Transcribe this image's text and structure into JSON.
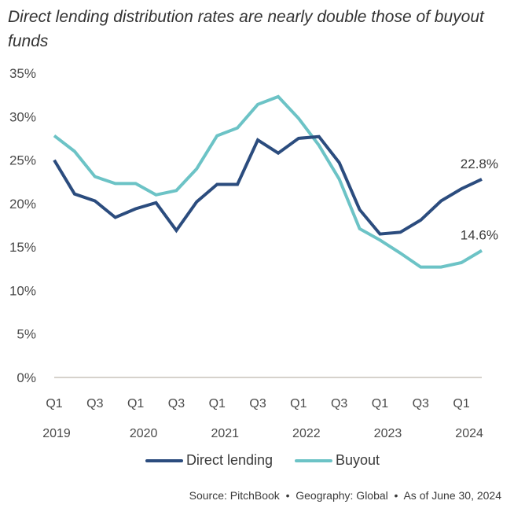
{
  "title": "Direct lending distribution rates are nearly double those of buyout funds",
  "chart_data": {
    "type": "line",
    "title": "Direct lending distribution rates are nearly double those of buyout funds",
    "xlabel": "",
    "ylabel": "",
    "ylim": [
      0,
      35
    ],
    "yticks": [
      "0%",
      "5%",
      "10%",
      "15%",
      "20%",
      "25%",
      "30%",
      "35%"
    ],
    "ytick_values": [
      0,
      5,
      10,
      15,
      20,
      25,
      30,
      35
    ],
    "grid": false,
    "x": [
      "Q1 2019",
      "Q2 2019",
      "Q3 2019",
      "Q4 2019",
      "Q1 2020",
      "Q2 2020",
      "Q3 2020",
      "Q4 2020",
      "Q1 2021",
      "Q2 2021",
      "Q3 2021",
      "Q4 2021",
      "Q1 2022",
      "Q2 2022",
      "Q3 2022",
      "Q4 2022",
      "Q1 2023",
      "Q2 2023",
      "Q3 2023",
      "Q4 2023",
      "Q1 2024",
      "Q2 2024"
    ],
    "xtick_labels": [
      {
        "index": 0,
        "quarter": "Q1",
        "year": "2019"
      },
      {
        "index": 2,
        "quarter": "Q3",
        "year": ""
      },
      {
        "index": 4,
        "quarter": "Q1",
        "year": "2020"
      },
      {
        "index": 6,
        "quarter": "Q3",
        "year": ""
      },
      {
        "index": 8,
        "quarter": "Q1",
        "year": "2021"
      },
      {
        "index": 10,
        "quarter": "Q3",
        "year": ""
      },
      {
        "index": 12,
        "quarter": "Q1",
        "year": "2022"
      },
      {
        "index": 14,
        "quarter": "Q3",
        "year": ""
      },
      {
        "index": 16,
        "quarter": "Q1",
        "year": "2023"
      },
      {
        "index": 18,
        "quarter": "Q3",
        "year": ""
      },
      {
        "index": 20,
        "quarter": "Q1",
        "year": "2024"
      }
    ],
    "series": [
      {
        "name": "Direct lending",
        "color": "#2b4c7e",
        "values": [
          25.0,
          21.1,
          20.3,
          18.4,
          19.4,
          20.1,
          16.9,
          20.2,
          22.2,
          22.2,
          27.3,
          25.8,
          27.5,
          27.7,
          24.7,
          19.3,
          16.5,
          16.7,
          18.1,
          20.3,
          21.7,
          22.8
        ],
        "end_label": "22.8%"
      },
      {
        "name": "Buyout",
        "color": "#6cc3c6",
        "values": [
          27.8,
          26.0,
          23.1,
          22.3,
          22.3,
          21.0,
          21.5,
          24.0,
          27.8,
          28.7,
          31.4,
          32.3,
          29.8,
          26.7,
          22.8,
          17.1,
          15.8,
          14.3,
          12.7,
          12.7,
          13.2,
          14.6
        ],
        "end_label": "14.6%"
      }
    ],
    "legend": [
      "Direct lending",
      "Buyout"
    ],
    "legend_position": "bottom-center"
  },
  "legend": {
    "items": [
      {
        "label": "Direct lending",
        "color": "#2b4c7e"
      },
      {
        "label": "Buyout",
        "color": "#6cc3c6"
      }
    ]
  },
  "source": {
    "text": "Source: PitchBook  •  Geography: Global  •  As of June 30, 2024"
  },
  "colors": {
    "axis": "#c8c4bc",
    "text": "#3a3a3a"
  }
}
